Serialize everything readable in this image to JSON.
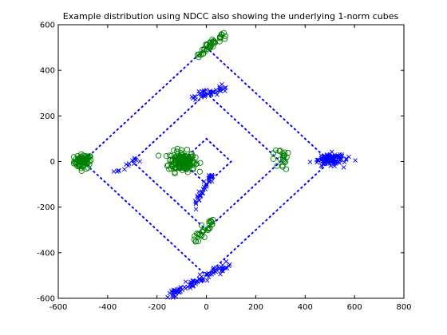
{
  "chart_data": {
    "type": "scatter",
    "title": "Example distribution using NDCC also showing the underlying 1-norm cubes",
    "xlabel": "",
    "ylabel": "",
    "xlim": [
      -600,
      800
    ],
    "ylim": [
      -600,
      600
    ],
    "xticks": [
      -600,
      -400,
      -200,
      0,
      200,
      400,
      600,
      800
    ],
    "yticks": [
      -600,
      -400,
      -200,
      0,
      200,
      400,
      600
    ],
    "grid": false,
    "legend": "none",
    "colors": {
      "circles": "#007f00",
      "crosses": "#0000ff",
      "cubes": "#0000ff"
    },
    "series": [
      {
        "marker": "circle",
        "color": "#007f00",
        "clusters": [
          {
            "cx": -500,
            "cy": 0,
            "spread_x": 40,
            "spread_y": 35,
            "count": 70,
            "shape": "blob"
          },
          {
            "cx": -100,
            "cy": 0,
            "spread_x": 60,
            "spread_y": 50,
            "count": 160,
            "shape": "blob"
          },
          {
            "cx": 20,
            "cy": 510,
            "spread_x": 55,
            "spread_y": 50,
            "count": 40,
            "shape": "line",
            "slope": 0.9
          },
          {
            "cx": -10,
            "cy": -300,
            "spread_x": 30,
            "spread_y": 40,
            "count": 30,
            "shape": "line",
            "slope": 1.0
          },
          {
            "cx": 300,
            "cy": 20,
            "spread_x": 35,
            "spread_y": 60,
            "count": 22,
            "shape": "blob"
          }
        ]
      },
      {
        "marker": "cross",
        "color": "#0000ff",
        "clusters": [
          {
            "cx": 500,
            "cy": 10,
            "spread_x": 70,
            "spread_y": 30,
            "count": 120,
            "shape": "blob"
          },
          {
            "cx": -30,
            "cy": -520,
            "spread_x": 100,
            "spread_y": 70,
            "count": 90,
            "shape": "line",
            "slope": 0.55
          },
          {
            "cx": 10,
            "cy": 300,
            "spread_x": 55,
            "spread_y": 20,
            "count": 40,
            "shape": "line",
            "slope": 0.3
          },
          {
            "cx": -10,
            "cy": -120,
            "spread_x": 30,
            "spread_y": 75,
            "count": 40,
            "shape": "line",
            "slope": 1.9
          },
          {
            "cx": -320,
            "cy": -20,
            "spread_x": 50,
            "spread_y": 30,
            "count": 14,
            "shape": "line",
            "slope": 0.6
          }
        ]
      }
    ],
    "cubes": [
      {
        "center": [
          0,
          0
        ],
        "radius": 500
      },
      {
        "center": [
          0,
          0
        ],
        "radius": 300
      },
      {
        "center": [
          0,
          0
        ],
        "radius": 100
      }
    ]
  }
}
